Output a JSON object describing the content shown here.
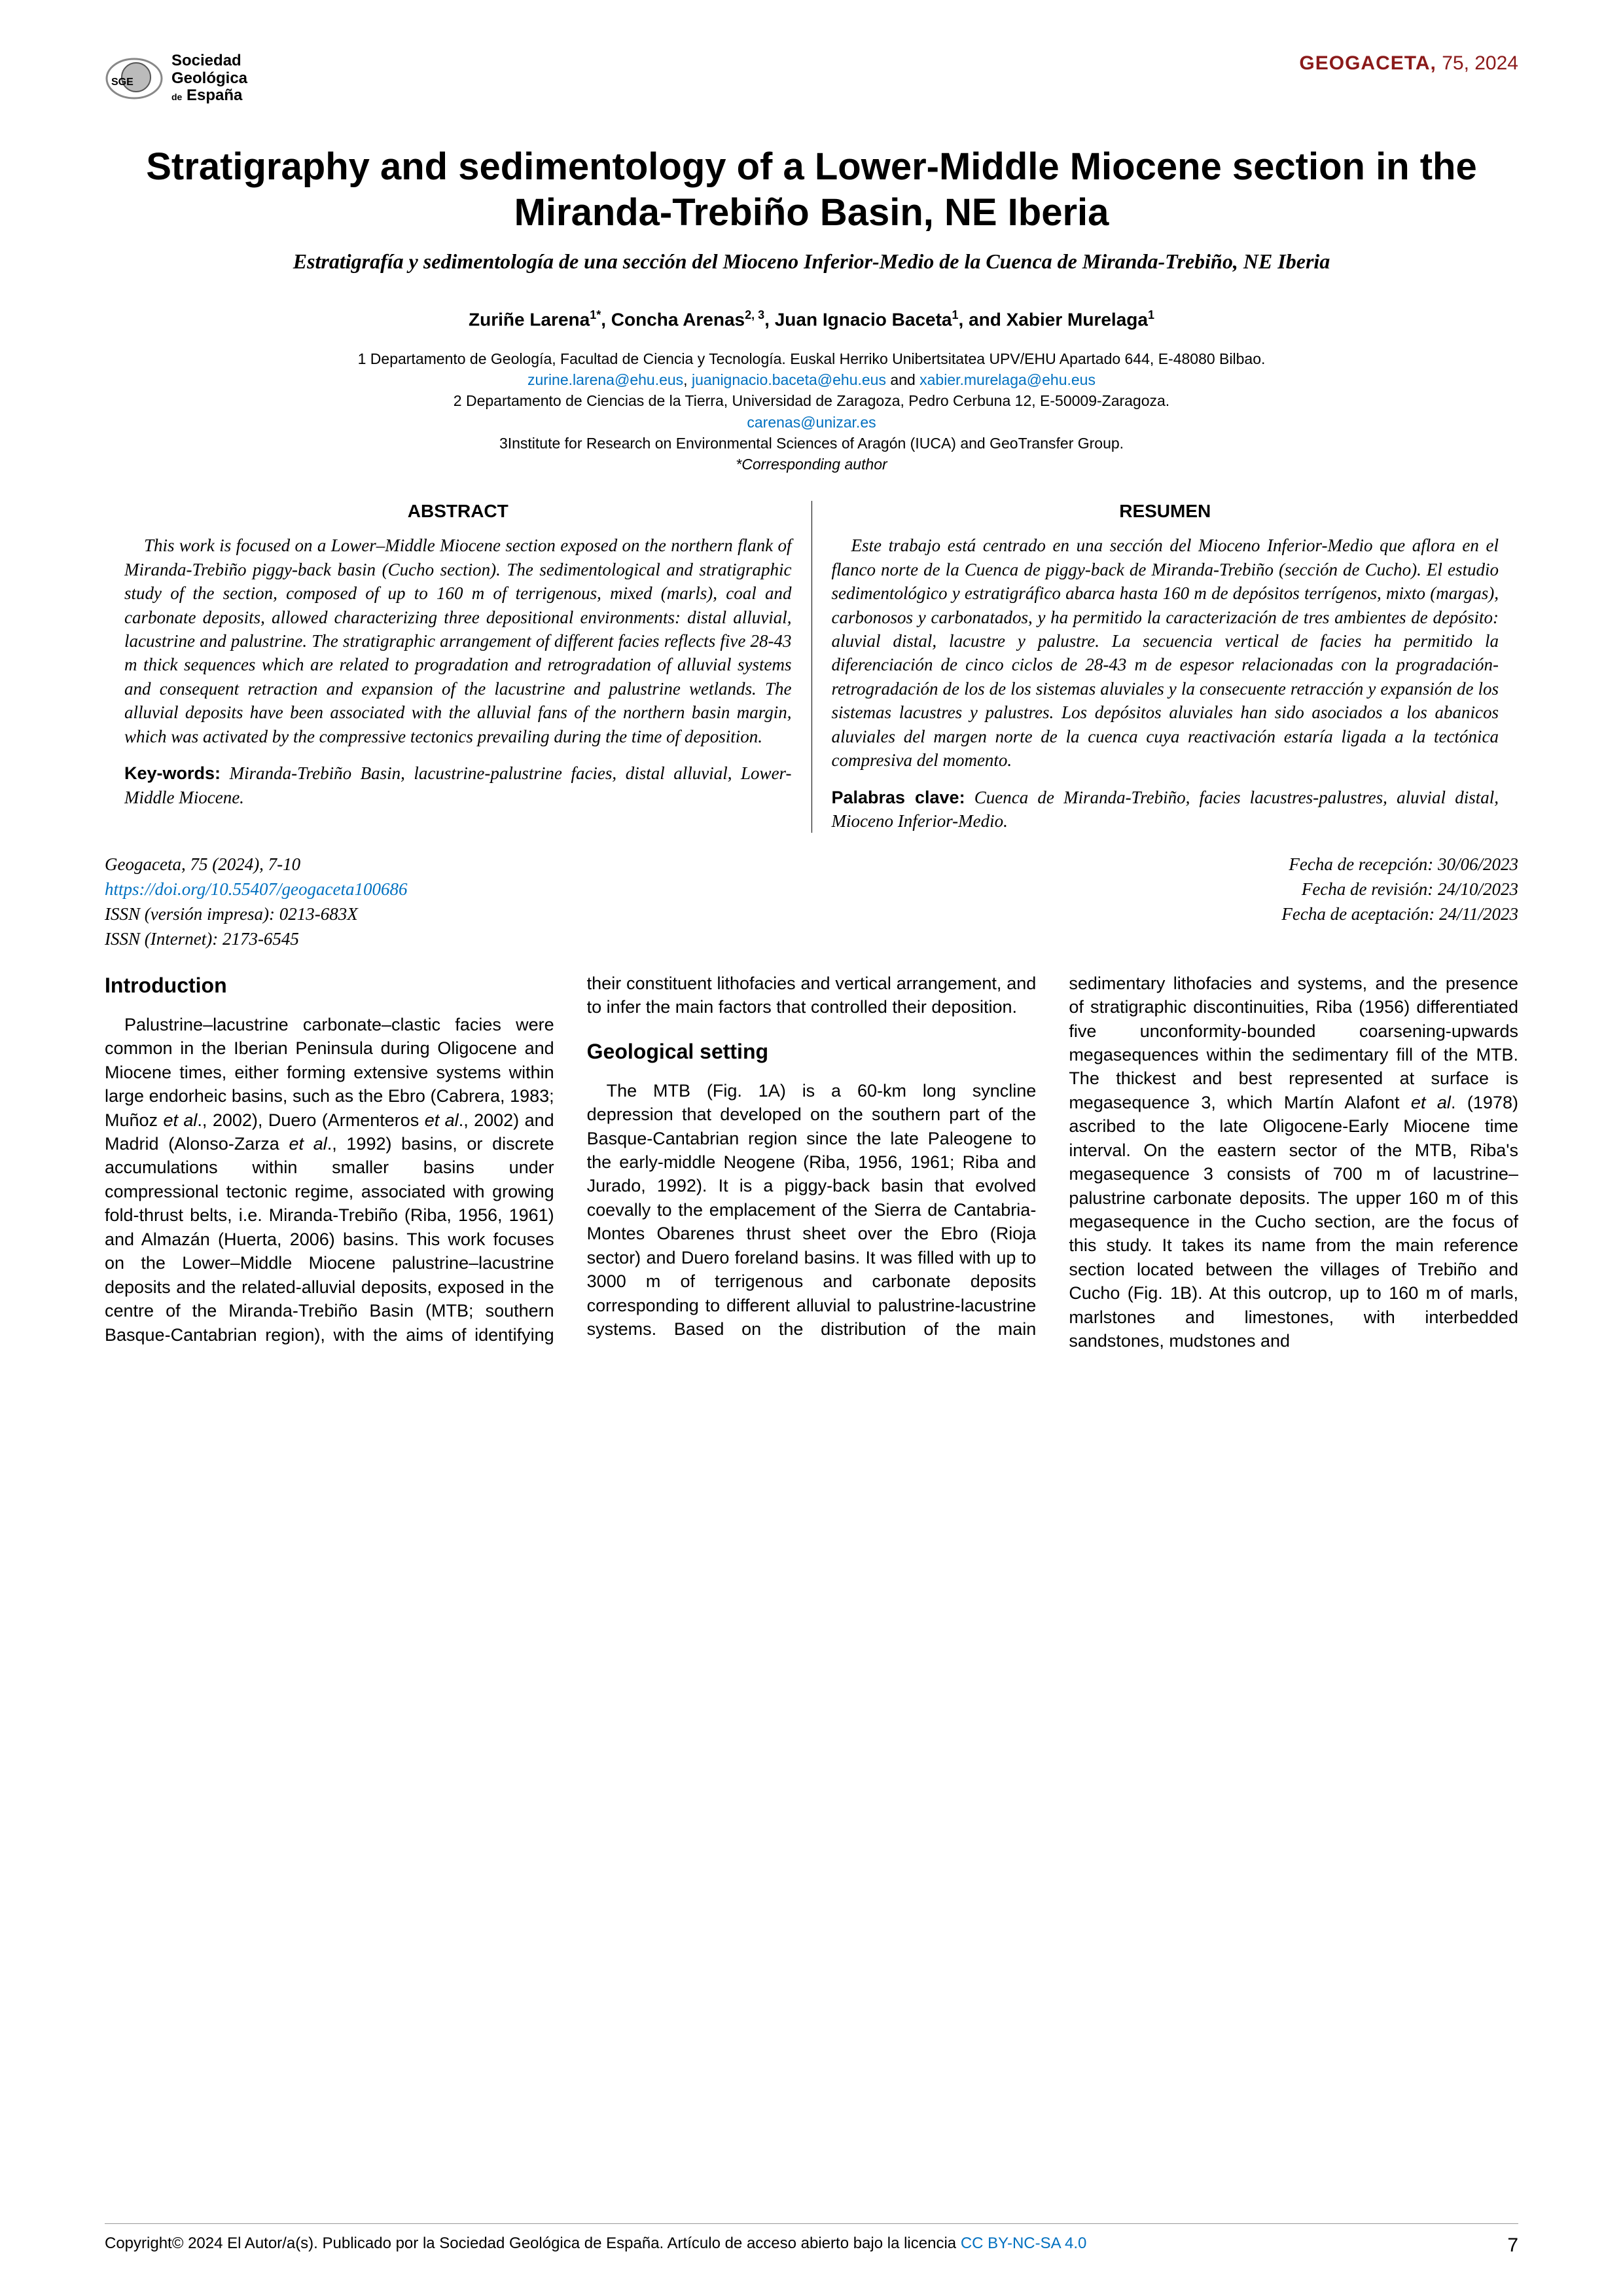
{
  "header": {
    "logo_line1": "Sociedad",
    "logo_line2": "Geológica",
    "logo_line3": "España",
    "logo_prefix": "de",
    "journal_name": "GEOGACETA,",
    "issue": " 75, 2024"
  },
  "title_en": "Stratigraphy and sedimentology of a Lower-Middle Miocene section in the Miranda-Trebiño Basin, NE Iberia",
  "title_es": "Estratigrafía y sedimentología de una sección del Mioceno Inferior-Medio de la Cuenca de Miranda-Trebiño, NE Iberia",
  "authors_html": "Zuriñe Larena<sup>1*</sup>, Concha Arenas<sup>2, 3</sup>, Juan Ignacio Baceta<sup>1</sup>, and Xabier Murelaga<sup>1</sup>",
  "affiliations": {
    "a1_text": "1 Departamento de Geología, Facultad de Ciencia y Tecnología. Euskal Herriko Unibertsitatea UPV/EHU Apartado 644, E-48080 Bilbao.",
    "a1_email1": "zurine.larena@ehu.eus",
    "a1_sep1": ", ",
    "a1_email2": "juanignacio.baceta@ehu.eus",
    "a1_and": " and ",
    "a1_email3": "xabier.murelaga@ehu.eus",
    "a2_text": "2 Departamento de Ciencias de la Tierra, Universidad de Zaragoza, Pedro Cerbuna 12, E-50009-Zaragoza.",
    "a2_email": "carenas@unizar.es",
    "a3_text": "3Institute for Research on Environmental Sciences of Aragón (IUCA) and GeoTransfer Group.",
    "corresp": "*Corresponding author"
  },
  "abstract": {
    "heading_en": "ABSTRACT",
    "body_en": "This work is focused on a Lower–Middle Miocene section exposed on the northern flank of Miranda-Trebiño piggy-back basin (Cucho section). The sedimentological and stratigraphic study of the section, composed of up to 160 m of terrigenous, mixed (marls), coal and carbonate deposits, allowed characterizing three depositional environments: distal alluvial, lacustrine and palustrine. The stratigraphic arrangement of different facies reflects five 28-43 m thick sequences which are related to progradation and retrogradation of alluvial systems and consequent retraction and expansion of the lacustrine and palustrine wetlands. The alluvial deposits have been associated with the alluvial fans of the northern basin margin, which was activated by the compressive tectonics prevailing during the time of deposition.",
    "keywords_label_en": "Key-words:",
    "keywords_en": "Miranda-Trebiño Basin, lacustrine-palustrine facies, distal alluvial, Lower-Middle Miocene.",
    "heading_es": "RESUMEN",
    "body_es": "Este trabajo está centrado en una sección del Mioceno Inferior-Medio que aflora en el flanco norte de la Cuenca de piggy-back de Miranda-Trebiño (sección de Cucho). El estudio sedimentológico y estratigráfico abarca hasta 160 m de depósitos terrígenos, mixto (margas), carbonosos y carbonatados, y ha permitido la caracterización de tres ambientes de depósito: aluvial distal, lacustre y palustre. La secuencia vertical de facies ha permitido la diferenciación de cinco ciclos de 28-43 m de espesor relacionadas con la progradación-retrogradación de los de los sistemas aluviales y la consecuente retracción y expansión de los sistemas lacustres y palustres. Los depósitos aluviales han sido asociados a los abanicos aluviales del margen norte de la cuenca cuya reactivación estaría ligada a la tectónica compresiva del momento.",
    "keywords_label_es": "Palabras clave:",
    "keywords_es": "Cuenca de Miranda-Trebiño, facies lacustres-palustres, aluvial distal, Mioceno Inferior-Medio."
  },
  "citation": {
    "line1": "Geogaceta, 75 (2024), 7-10",
    "doi": "https://doi.org/10.55407/geogaceta100686",
    "issn_print": "ISSN (versión impresa): 0213-683X",
    "issn_web": "ISSN (Internet): 2173-6545",
    "recv": "Fecha de recepción: 30/06/2023",
    "rev": "Fecha de revisión: 24/10/2023",
    "acc": "Fecha de aceptación: 24/11/2023"
  },
  "body": {
    "intro_heading": "Introduction",
    "intro_p1_a": "Palustrine–lacustrine carbonate–clastic facies were common in the Iberian Peninsula during Oligocene and Miocene times, either forming extensive systems within large endorheic basins, such as the Ebro (Cabrera, 1983; Muñoz ",
    "intro_p1_b": "et al",
    "intro_p1_c": "., 2002), Duero (Armenteros ",
    "intro_p1_d": "et al",
    "intro_p1_e": "., 2002) and Madrid (Alonso-Zarza ",
    "intro_p1_f": "et al",
    "intro_p1_g": "., 1992) basins, or discrete accumulations within smaller basins under compressional tectonic regime, associated with growing fold-thrust belts, i.e. Miranda-Trebiño (Riba, 1956, 1961) and Almazán (Huerta, 2006) basins. This work focuses on the Lower–Middle Miocene palustrine–lacustrine deposits and the related-alluvial deposits, exposed in the centre of the Miranda-Trebiño Basin (MTB; southern Basque-Cantabrian region), with the aims of identifying their constituent lithofacies and vertical arrangement, and to infer the main factors that controlled their deposition.",
    "geo_heading": "Geological setting",
    "geo_p1_a": "The MTB (Fig. 1A) is a 60-km long syncline depression that developed on the southern part of the Basque-Cantabrian region since the late Paleogene to the early-middle Neogene (Riba, 1956, 1961; Riba and Jurado, 1992). It is a piggy-back basin that evolved coevally to the emplacement of the Sierra de Cantabria-Montes Obarenes thrust sheet over the Ebro (Rioja sector) and Duero foreland basins. It was filled with up to 3000 m of terrigenous and carbonate deposits corresponding to different alluvial to palustrine-lacustrine systems. Based on the distribution of the main sedimentary lithofacies and systems, and the presence of stratigraphic discontinuities, Riba (1956) differentiated five unconformity-bounded coarsening-upwards megasequences within the sedimentary fill of the MTB. The thickest and best represented at surface is megasequence 3, which Martín Alafont ",
    "geo_p1_b": "et al",
    "geo_p1_c": ". (1978) ascribed to the late Oligocene-Early Miocene time interval. On the eastern sector of the MTB, Riba's megasequence 3 consists of 700 m of lacustrine–palustrine carbonate deposits. The upper 160 m of this megasequence in the Cucho section, are the focus of this study. It takes its name from the main reference section located between the villages of Trebiño and Cucho (Fig. 1B). At this outcrop, up to 160 m of marls, marlstones and limestones, with interbedded sandstones, mudstones and"
  },
  "footer": {
    "copyright": "Copyright© 2024 El Autor/a(s). Publicado por la Sociedad Geológica de España. Artículo de acceso abierto bajo la licencia ",
    "license": "CC BY-NC-SA 4.0",
    "page": "7"
  },
  "colors": {
    "brand_red": "#8b1a1a",
    "link_blue": "#0070c0"
  }
}
